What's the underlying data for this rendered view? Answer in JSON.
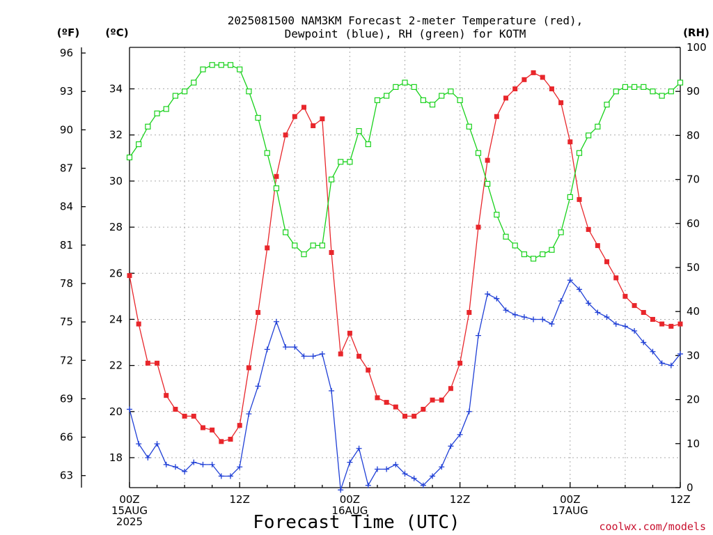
{
  "title_lines": [
    "2025081500 NAM3KM Forecast 2-meter Temperature (red),",
    "Dewpoint (blue), RH (green) for KOTM"
  ],
  "unit_labels": {
    "fahrenheit": "(ºF)",
    "celsius": "(ºC)",
    "rh": "(RH)"
  },
  "x_axis_title": "Forecast Time (UTC)",
  "credit": "coolwx.com/models",
  "x_ticks": [
    {
      "lines": [
        "00Z",
        "15AUG",
        "2025"
      ]
    },
    {
      "lines": [
        "12Z"
      ]
    },
    {
      "lines": [
        "00Z",
        "16AUG"
      ]
    },
    {
      "lines": [
        "12Z"
      ]
    },
    {
      "lines": [
        "00Z",
        "17AUG"
      ]
    },
    {
      "lines": [
        "12Z"
      ]
    }
  ],
  "colors": {
    "temperature": "#e8262b",
    "dewpoint": "#1f3fd6",
    "rh": "#17d11a",
    "credit": "#c8102e"
  },
  "chart_data": {
    "type": "line",
    "title": "2025081500 NAM3KM Forecast 2-meter Temperature (red), Dewpoint (blue), RH (green) for KOTM",
    "xlabel": "Forecast Time (UTC)",
    "x": [
      0,
      1,
      2,
      3,
      4,
      5,
      6,
      7,
      8,
      9,
      10,
      11,
      12,
      13,
      14,
      15,
      16,
      17,
      18,
      19,
      20,
      21,
      22,
      23,
      24,
      25,
      26,
      27,
      28,
      29,
      30,
      31,
      32,
      33,
      34,
      35,
      36,
      37,
      38,
      39,
      40,
      41,
      42,
      43,
      44,
      45,
      46,
      47,
      48,
      49,
      50,
      51,
      52,
      53,
      54,
      55,
      56,
      57,
      58,
      59,
      60
    ],
    "x_unit": "forecast hour from 2025-08-15 00Z",
    "xlim": [
      0,
      60
    ],
    "x_tick_values": [
      0,
      12,
      24,
      36,
      48,
      60
    ],
    "y_left_celsius": {
      "ylim": [
        16.7,
        35.8
      ],
      "ticks": [
        18,
        20,
        22,
        24,
        26,
        28,
        30,
        32,
        34
      ]
    },
    "y_left_fahrenheit": {
      "ticks": [
        63,
        66,
        69,
        72,
        75,
        78,
        81,
        84,
        87,
        90,
        93,
        96
      ]
    },
    "y_right_rh": {
      "ylim": [
        0,
        100
      ],
      "ticks": [
        0,
        10,
        20,
        30,
        40,
        50,
        60,
        70,
        80,
        90,
        100
      ]
    },
    "grid": true,
    "series": [
      {
        "name": "Temperature",
        "unit": "C",
        "axis": "left",
        "marker": "filled-square",
        "values": [
          25.9,
          23.8,
          22.1,
          22.1,
          20.7,
          20.1,
          19.8,
          19.8,
          19.3,
          19.2,
          18.7,
          18.8,
          19.4,
          21.9,
          24.3,
          27.1,
          30.2,
          32.0,
          32.8,
          33.2,
          32.4,
          32.7,
          26.9,
          22.5,
          23.4,
          22.4,
          21.8,
          20.6,
          20.4,
          20.2,
          19.8,
          19.8,
          20.1,
          20.5,
          20.5,
          21.0,
          22.1,
          24.3,
          28.0,
          30.9,
          32.8,
          33.6,
          34.0,
          34.4,
          34.7,
          34.5,
          34.0,
          33.4,
          31.7,
          29.2,
          27.9,
          27.2,
          26.5,
          25.8,
          25.0,
          24.6,
          24.3,
          24.0,
          23.8,
          23.7,
          23.8
        ]
      },
      {
        "name": "Dewpoint",
        "unit": "C",
        "axis": "left",
        "marker": "plus",
        "values": [
          20.1,
          18.6,
          18.0,
          18.6,
          17.7,
          17.6,
          17.4,
          17.8,
          17.7,
          17.7,
          17.2,
          17.2,
          17.6,
          19.9,
          21.1,
          22.7,
          23.9,
          22.8,
          22.8,
          22.4,
          22.4,
          22.5,
          20.9,
          16.6,
          17.8,
          18.4,
          16.8,
          17.5,
          17.5,
          17.7,
          17.3,
          17.1,
          16.8,
          17.2,
          17.6,
          18.5,
          19.0,
          20.0,
          23.3,
          25.1,
          24.9,
          24.4,
          24.2,
          24.1,
          24.0,
          24.0,
          23.8,
          24.8,
          25.7,
          25.3,
          24.7,
          24.3,
          24.1,
          23.8,
          23.7,
          23.5,
          23.0,
          22.6,
          22.1,
          22.0,
          22.5
        ]
      },
      {
        "name": "RH",
        "unit": "%",
        "axis": "right",
        "marker": "open-square",
        "values": [
          75,
          78,
          82,
          85,
          86,
          89,
          90,
          92,
          95,
          96,
          96,
          96,
          95,
          90,
          84,
          76,
          68,
          58,
          55,
          53,
          55,
          55,
          70,
          74,
          74,
          81,
          78,
          88,
          89,
          91,
          92,
          91,
          88,
          87,
          89,
          90,
          88,
          82,
          76,
          69,
          62,
          57,
          55,
          53,
          52,
          53,
          54,
          58,
          66,
          76,
          80,
          82,
          87,
          90,
          91,
          91,
          91,
          90,
          89,
          90,
          92
        ]
      }
    ]
  }
}
